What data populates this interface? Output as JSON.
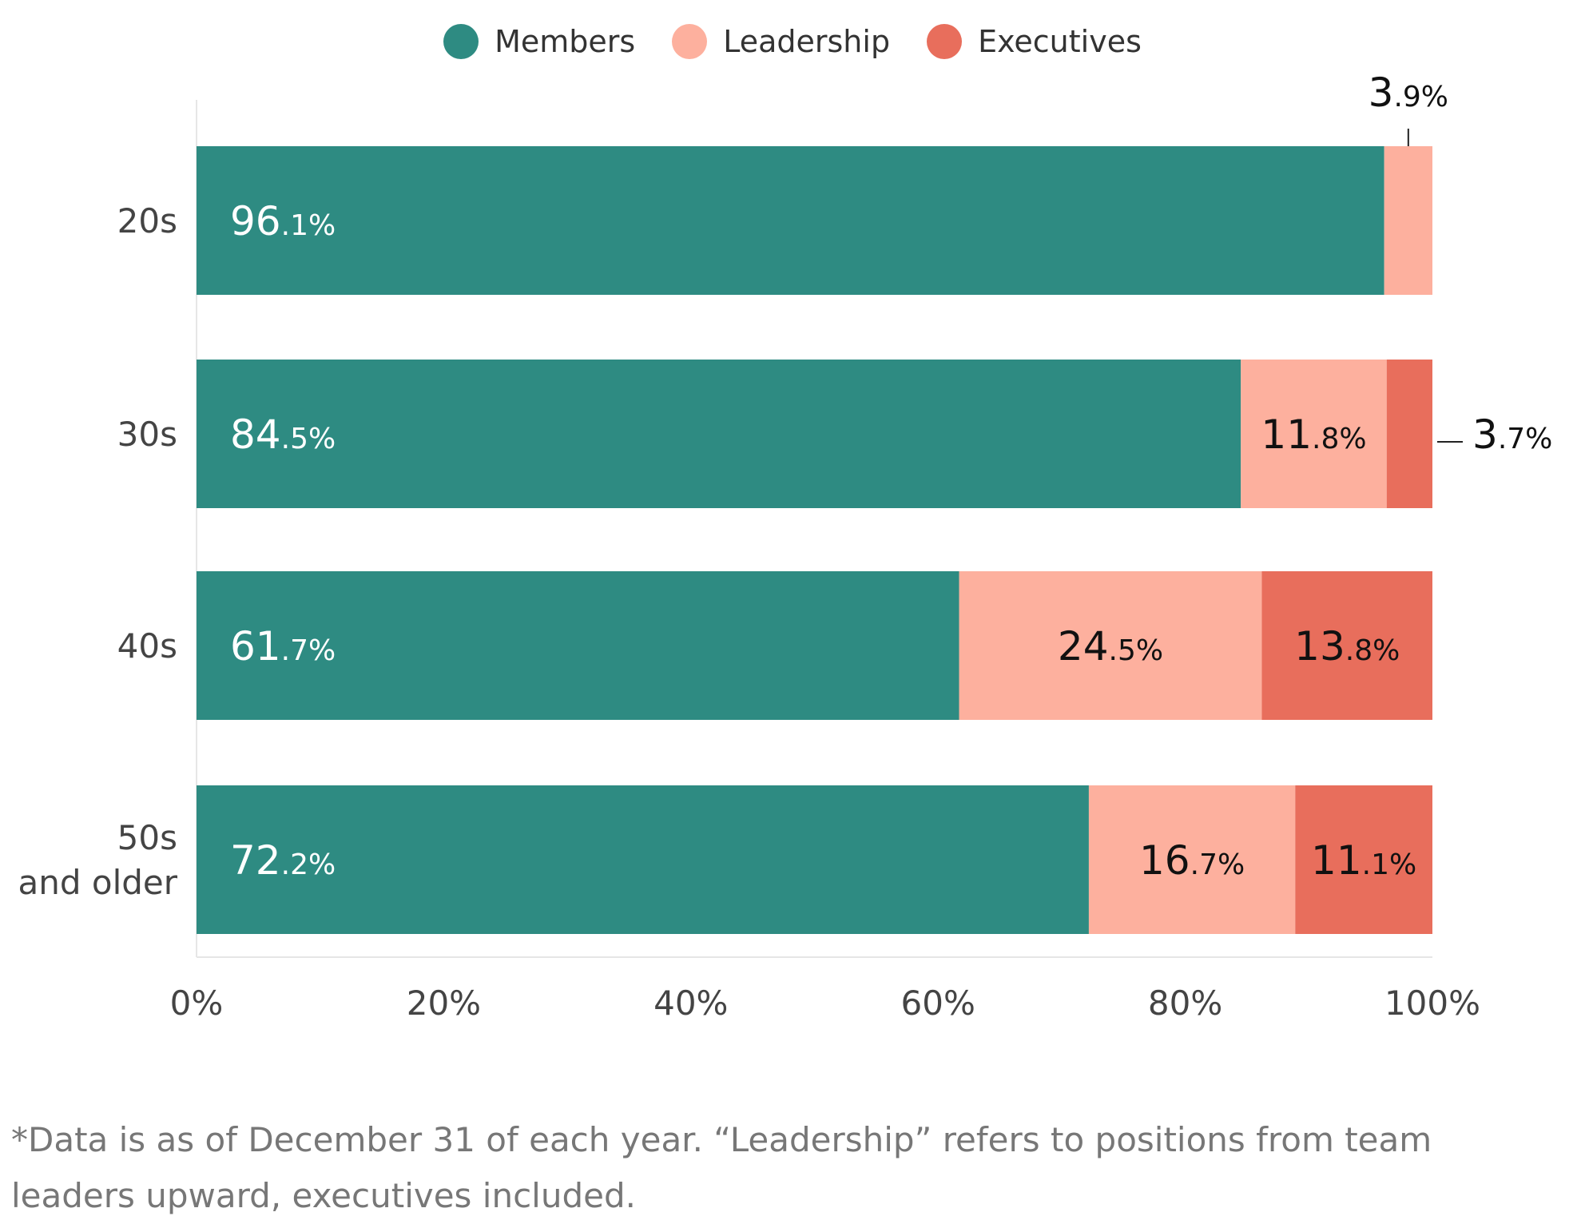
{
  "chart_data": {
    "type": "bar",
    "orientation": "horizontal",
    "stacked": true,
    "categories": [
      "20s",
      "30s",
      "40s",
      "50s and older"
    ],
    "category_lines": [
      [
        "20s"
      ],
      [
        "30s"
      ],
      [
        "40s"
      ],
      [
        "50s",
        "and older"
      ]
    ],
    "series": [
      {
        "name": "Members",
        "color": "#2e8b82",
        "values": [
          96.1,
          84.5,
          61.7,
          72.2
        ],
        "labels": [
          "96.1%",
          "84.5%",
          "61.7%",
          "72.2%"
        ]
      },
      {
        "name": "Leadership",
        "color": "#fdb09e",
        "values": [
          3.9,
          11.8,
          24.5,
          16.7
        ],
        "labels": [
          "3.9%",
          "11.8%",
          "24.5%",
          "16.7%"
        ]
      },
      {
        "name": "Executives",
        "color": "#e86e5c",
        "values": [
          0,
          3.7,
          13.8,
          11.1
        ],
        "labels": [
          "",
          "3.7%",
          "13.8%",
          "11.1%"
        ]
      }
    ],
    "xlim": [
      0,
      100
    ],
    "xticks": [
      "0%",
      "20%",
      "40%",
      "60%",
      "80%",
      "100%"
    ],
    "legend_position": "top-center",
    "grid": false
  },
  "footnote": "*Data is as of December 31 of each year. “Leadership” refers to positions from team leaders upward, executives included."
}
